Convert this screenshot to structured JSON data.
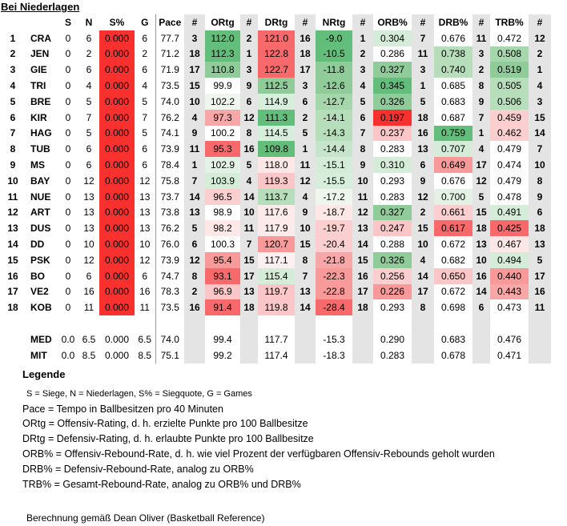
{
  "title": "Bei Niederlagen",
  "columns": [
    "",
    "",
    "S",
    "N",
    "S%",
    "G",
    "Pace",
    "#",
    "ORtg",
    "#",
    "DRtg",
    "#",
    "NRtg",
    "#",
    "ORB%",
    "#",
    "DRB%",
    "#",
    "TRB%",
    "#"
  ],
  "rows": [
    [
      "1",
      "CRA",
      "0",
      "6",
      "0.000",
      "6",
      "77.7",
      "3",
      "112.0",
      "2",
      "121.0",
      "16",
      "-9.0",
      "1",
      "0.304",
      "7",
      "0.676",
      "11",
      "0.472",
      "12"
    ],
    [
      "2",
      "JEN",
      "0",
      "2",
      "0.000",
      "2",
      "71.2",
      "18",
      "112.3",
      "1",
      "122.8",
      "18",
      "-10.5",
      "2",
      "0.286",
      "11",
      "0.738",
      "3",
      "0.508",
      "2"
    ],
    [
      "3",
      "GIE",
      "0",
      "6",
      "0.000",
      "6",
      "71.9",
      "17",
      "110.8",
      "3",
      "122.7",
      "17",
      "-11.8",
      "3",
      "0.327",
      "3",
      "0.740",
      "2",
      "0.519",
      "1"
    ],
    [
      "4",
      "TRI",
      "0",
      "4",
      "0.000",
      "4",
      "73.5",
      "15",
      "99.9",
      "9",
      "112.5",
      "3",
      "-12.6",
      "4",
      "0.345",
      "1",
      "0.685",
      "8",
      "0.505",
      "4"
    ],
    [
      "5",
      "BRE",
      "0",
      "5",
      "0.000",
      "5",
      "74.0",
      "10",
      "102.2",
      "6",
      "114.9",
      "6",
      "-12.7",
      "5",
      "0.326",
      "5",
      "0.683",
      "9",
      "0.506",
      "3"
    ],
    [
      "6",
      "KIR",
      "0",
      "7",
      "0.000",
      "7",
      "76.2",
      "4",
      "97.3",
      "12",
      "111.3",
      "2",
      "-14.1",
      "6",
      "0.197",
      "18",
      "0.687",
      "7",
      "0.459",
      "15"
    ],
    [
      "7",
      "HAG",
      "0",
      "5",
      "0.000",
      "5",
      "74.1",
      "9",
      "100.2",
      "8",
      "114.5",
      "5",
      "-14.3",
      "7",
      "0.237",
      "16",
      "0.759",
      "1",
      "0.462",
      "14"
    ],
    [
      "8",
      "TUB",
      "0",
      "6",
      "0.000",
      "6",
      "73.9",
      "11",
      "95.3",
      "16",
      "109.8",
      "1",
      "-14.4",
      "8",
      "0.283",
      "13",
      "0.707",
      "4",
      "0.479",
      "7"
    ],
    [
      "9",
      "MS",
      "0",
      "6",
      "0.000",
      "6",
      "78.4",
      "1",
      "102.9",
      "5",
      "118.0",
      "11",
      "-15.1",
      "9",
      "0.310",
      "6",
      "0.649",
      "17",
      "0.474",
      "10"
    ],
    [
      "10",
      "BAY",
      "0",
      "12",
      "0.000",
      "12",
      "75.8",
      "7",
      "103.9",
      "4",
      "119.3",
      "12",
      "-15.5",
      "10",
      "0.293",
      "9",
      "0.676",
      "12",
      "0.479",
      "8"
    ],
    [
      "11",
      "NUE",
      "0",
      "13",
      "0.000",
      "13",
      "73.7",
      "14",
      "96.5",
      "14",
      "113.7",
      "4",
      "-17.2",
      "11",
      "0.283",
      "12",
      "0.700",
      "5",
      "0.478",
      "9"
    ],
    [
      "12",
      "ART",
      "0",
      "13",
      "0.000",
      "13",
      "73.8",
      "13",
      "98.9",
      "10",
      "117.6",
      "9",
      "-18.7",
      "12",
      "0.327",
      "2",
      "0.661",
      "15",
      "0.491",
      "6"
    ],
    [
      "13",
      "DUS",
      "0",
      "13",
      "0.000",
      "13",
      "76.2",
      "5",
      "98.2",
      "11",
      "117.9",
      "10",
      "-19.7",
      "13",
      "0.247",
      "15",
      "0.617",
      "18",
      "0.425",
      "18"
    ],
    [
      "14",
      "DD",
      "0",
      "10",
      "0.000",
      "10",
      "76.0",
      "6",
      "100.3",
      "7",
      "120.7",
      "15",
      "-20.4",
      "14",
      "0.288",
      "10",
      "0.672",
      "13",
      "0.467",
      "13"
    ],
    [
      "15",
      "PSK",
      "0",
      "12",
      "0.000",
      "12",
      "73.9",
      "12",
      "95.4",
      "15",
      "117.1",
      "8",
      "-21.8",
      "15",
      "0.326",
      "4",
      "0.682",
      "10",
      "0.494",
      "5"
    ],
    [
      "16",
      "BO",
      "0",
      "6",
      "0.000",
      "6",
      "74.7",
      "8",
      "93.1",
      "17",
      "115.4",
      "7",
      "-22.3",
      "16",
      "0.256",
      "14",
      "0.650",
      "16",
      "0.440",
      "17"
    ],
    [
      "17",
      "VE2",
      "0",
      "16",
      "0.000",
      "16",
      "78.3",
      "2",
      "96.9",
      "13",
      "119.7",
      "13",
      "-22.8",
      "17",
      "0.226",
      "17",
      "0.672",
      "14",
      "0.443",
      "16"
    ],
    [
      "18",
      "KOB",
      "0",
      "11",
      "0.000",
      "11",
      "73.5",
      "16",
      "91.4",
      "18",
      "119.8",
      "14",
      "-28.4",
      "18",
      "0.293",
      "8",
      "0.698",
      "6",
      "0.473",
      "11"
    ]
  ],
  "summary": [
    [
      "",
      "MED",
      "0.0",
      "6.5",
      "0.000",
      "6.5",
      "74.0",
      "",
      "99.4",
      "",
      "117.7",
      "",
      "-15.3",
      "",
      "0.290",
      "",
      "0.683",
      "",
      "0.476",
      ""
    ],
    [
      "",
      "MIT",
      "0.0",
      "8.5",
      "0.000",
      "8.5",
      "75.1",
      "",
      "99.2",
      "",
      "117.4",
      "",
      "-18.3",
      "",
      "0.283",
      "",
      "0.678",
      "",
      "0.471",
      ""
    ]
  ],
  "cell_colors": {
    "ortg": [
      "#63be7b",
      "#63be7b",
      "#8fcc9a",
      "#ffffff",
      "#eef6ee",
      "#f8a7a8",
      "#ffffff",
      "#f8696b",
      "#e3f2e4",
      "#d4ecd8",
      "#fbcfd0",
      "#ffffff",
      "#fde7e7",
      "#ffffff",
      "#f8999a",
      "#f8696b",
      "#fbc6c7",
      "#f8696b"
    ],
    "drtg": [
      "#f8696b",
      "#f8696b",
      "#f8696b",
      "#8fcc9a",
      "#d8eedc",
      "#63be7b",
      "#d8eedc",
      "#63be7b",
      "#fde7e7",
      "#fbc6c7",
      "#b7deba",
      "#fdeaea",
      "#fdeaea",
      "#f8999a",
      "#fdf0f0",
      "#d4ecd8",
      "#fbc6c7",
      "#fbc6c7"
    ],
    "nrtg": [
      "#63be7b",
      "#63be7b",
      "#8fcc9a",
      "#8fcc9a",
      "#a5d6ac",
      "#b7deba",
      "#b7deba",
      "#c7e5cb",
      "#d4ecd8",
      "#d8eedc",
      "#eef6ee",
      "#fde7e7",
      "#fbcfd0",
      "#fbcfd0",
      "#f8a7a8",
      "#f8999a",
      "#f8999a",
      "#f8696b"
    ],
    "orb": [
      "#d4ecd8",
      "#ffffff",
      "#8fcc9a",
      "#63be7b",
      "#8fcc9a",
      "#f8312f",
      "#fbc6c7",
      "#ffffff",
      "#d4ecd8",
      "#ffffff",
      "#ffffff",
      "#8fcc9a",
      "#fbc6c7",
      "#ffffff",
      "#8fcc9a",
      "#fbcfd0",
      "#f8999a",
      "#ffffff"
    ],
    "drb": [
      "#ffffff",
      "#b7deba",
      "#b7deba",
      "#ffffff",
      "#ffffff",
      "#ffffff",
      "#63be7b",
      "#d4ecd8",
      "#f8999a",
      "#ffffff",
      "#e3f2e4",
      "#fbcfd0",
      "#f8696b",
      "#ffffff",
      "#ffffff",
      "#fbc6c7",
      "#ffffff",
      "#ffffff"
    ],
    "trb": [
      "#ffffff",
      "#a5d6ac",
      "#8fcc9a",
      "#b7deba",
      "#b7deba",
      "#fbcfd0",
      "#fbcfd0",
      "#ffffff",
      "#ffffff",
      "#ffffff",
      "#ffffff",
      "#d4ecd8",
      "#f8696b",
      "#fde7e7",
      "#d4ecd8",
      "#f8999a",
      "#f8a7a8",
      "#ffffff"
    ]
  },
  "legend": {
    "heading": "Legende",
    "lines": [
      "S = Siege, N = Niederlagen, S% = Siegquote, G = Games",
      "Pace = Tempo in Ballbesitzen pro 40 Minuten",
      "ORtg = Offensiv-Rating, d. h. erzielte Punkte pro 100 Ballbesitze",
      "DRtg = Defensiv-Rating, d. h. erlaubte Punkte pro 100 Ballbesitze",
      "ORB% = Offensiv-Rebound-Rate, d. h. wie viel Prozent der verfügbaren Offensiv-Rebounds geholt wurden",
      "DRB% = Defensiv-Rebound-Rate, analog zu ORB%",
      "TRB% = Gesamt-Rebound-Rate, analog zu ORB% und DRB%"
    ],
    "footer": "Berechnung gemäß Dean Oliver (Basketball Reference)"
  }
}
